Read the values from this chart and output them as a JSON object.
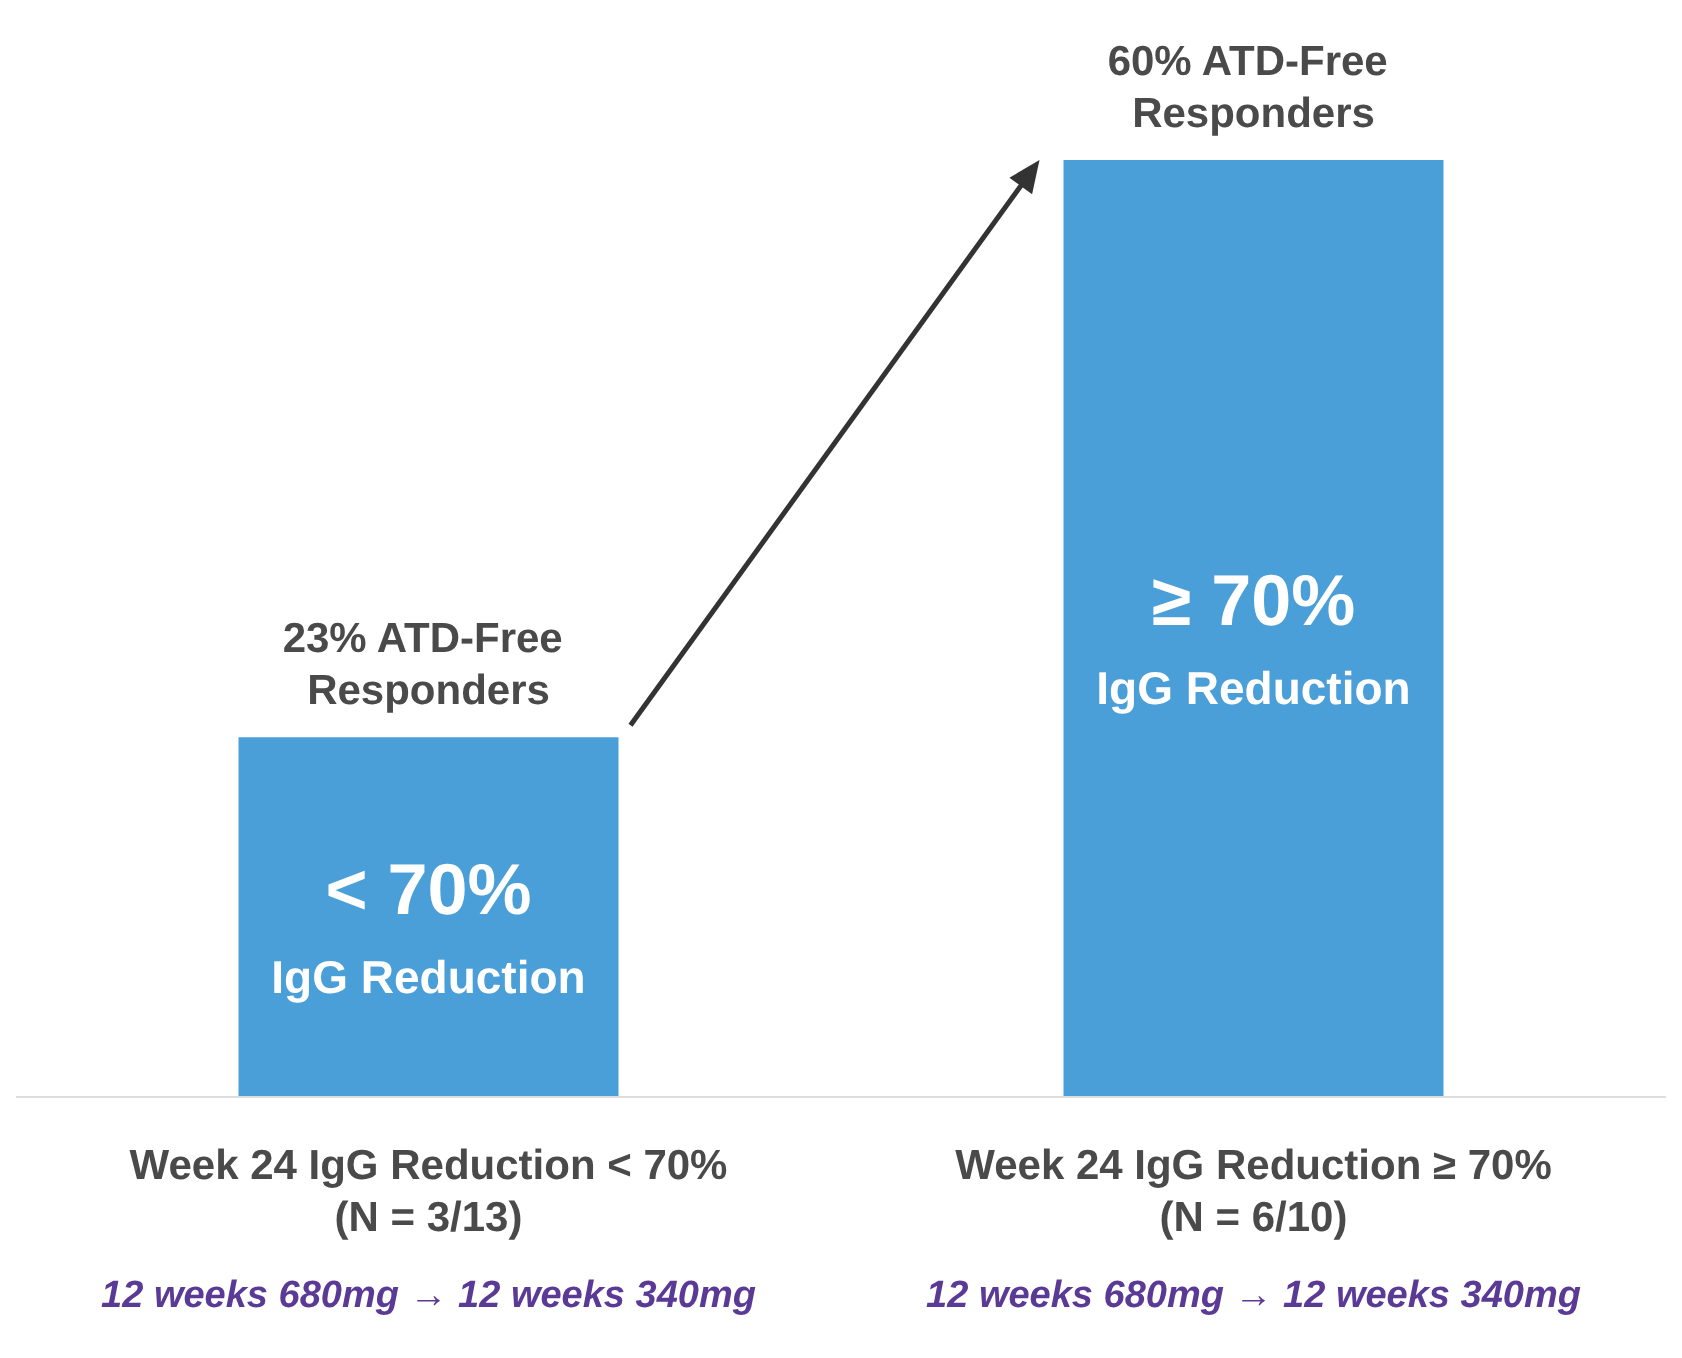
{
  "chart_data": {
    "type": "bar",
    "categories": [
      "Week 24 IgG Reduction < 70%\n(N = 3/13)",
      "Week 24 IgG Reduction ≥ 70%\n(N = 6/10)"
    ],
    "values": [
      23,
      60
    ],
    "color": "#4a9fd8",
    "value_labels": [
      "23% ATD-Free Responders",
      "60% ATD-Free Responders"
    ],
    "annotations": [
      "< 70%",
      "IgG Reduction",
      "≥ 70%",
      "IgG Reduction",
      "12 weeks 680mg → 12 weeks 340mg",
      "12 weeks 680mg → 12 weeks 340mg"
    ],
    "grid": false
  }
}
